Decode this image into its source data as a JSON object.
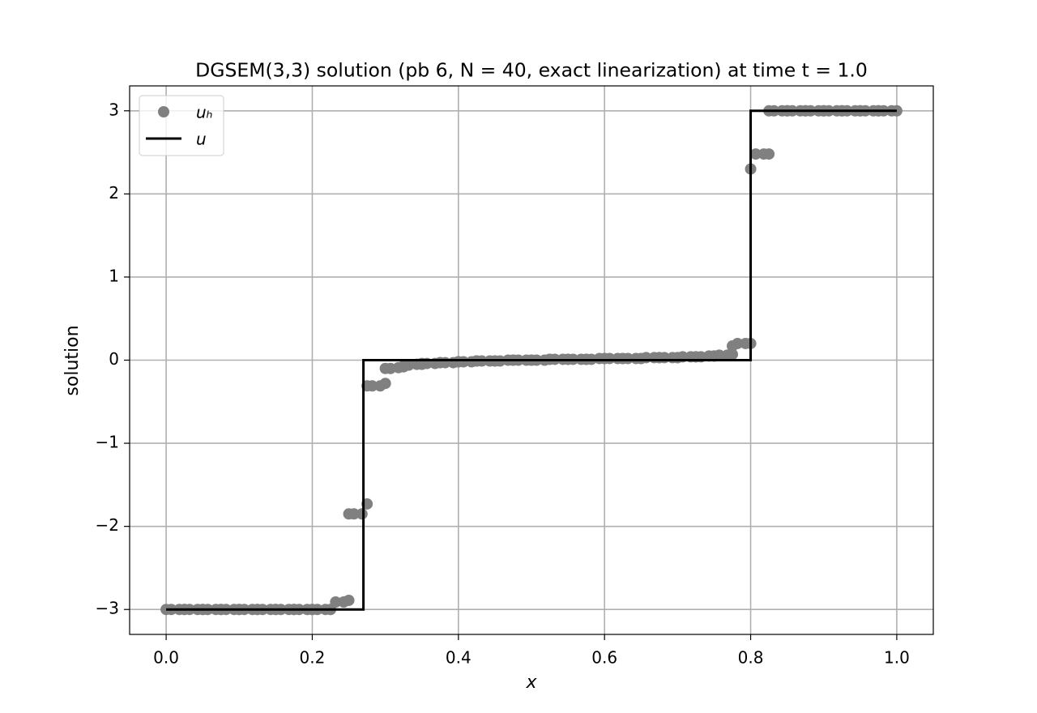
{
  "chart_data": {
    "type": "scatter",
    "title": "DGSEM(3,3) solution (pb 6, N = 40, exact linearization) at time t = 1.0",
    "xlabel": "x",
    "ylabel": "solution",
    "xlim": [
      -0.05,
      1.05
    ],
    "ylim": [
      -3.3,
      3.3
    ],
    "xticks": [
      {
        "value": 0,
        "label": "0.0"
      },
      0.2,
      0.4,
      0.6,
      0.8,
      {
        "value": 1,
        "label": "1.0"
      }
    ],
    "yticks": [
      {
        "value": -3,
        "label": "−3"
      },
      {
        "value": -2,
        "label": "−2"
      },
      {
        "value": -1,
        "label": "−1"
      },
      0,
      1,
      2,
      3
    ],
    "grid": true,
    "legend": "upper left",
    "series": [
      {
        "name": "uₕ",
        "type": "scatter",
        "color": "#808080",
        "x": [
          0,
          0.007,
          0.018,
          0.025,
          0.025,
          0.032,
          0.043,
          0.05,
          0.05,
          0.057,
          0.068,
          0.075,
          0.075,
          0.082,
          0.093,
          0.1,
          0.1,
          0.107,
          0.118,
          0.125,
          0.125,
          0.132,
          0.143,
          0.15,
          0.15,
          0.157,
          0.168,
          0.175,
          0.175,
          0.182,
          0.193,
          0.2,
          0.2,
          0.207,
          0.218,
          0.225,
          0.225,
          0.232,
          0.243,
          0.25,
          0.25,
          0.257,
          0.268,
          0.275,
          0.275,
          0.282,
          0.293,
          0.3,
          0.3,
          0.307,
          0.318,
          0.325,
          0.325,
          0.332,
          0.343,
          0.35,
          0.35,
          0.357,
          0.368,
          0.375,
          0.375,
          0.382,
          0.393,
          0.4,
          0.4,
          0.407,
          0.418,
          0.425,
          0.425,
          0.432,
          0.443,
          0.45,
          0.45,
          0.457,
          0.468,
          0.475,
          0.475,
          0.482,
          0.493,
          0.5,
          0.5,
          0.507,
          0.518,
          0.525,
          0.525,
          0.532,
          0.543,
          0.55,
          0.55,
          0.557,
          0.568,
          0.575,
          0.575,
          0.582,
          0.593,
          0.6,
          0.6,
          0.607,
          0.618,
          0.625,
          0.625,
          0.632,
          0.643,
          0.65,
          0.65,
          0.657,
          0.668,
          0.675,
          0.675,
          0.682,
          0.693,
          0.7,
          0.7,
          0.707,
          0.718,
          0.725,
          0.725,
          0.732,
          0.743,
          0.75,
          0.75,
          0.757,
          0.768,
          0.775,
          0.775,
          0.782,
          0.793,
          0.8,
          0.8,
          0.807,
          0.818,
          0.825,
          0.825,
          0.832,
          0.843,
          0.85,
          0.85,
          0.857,
          0.868,
          0.875,
          0.875,
          0.882,
          0.893,
          0.9,
          0.9,
          0.907,
          0.918,
          0.925,
          0.925,
          0.932,
          0.943,
          0.95,
          0.95,
          0.957,
          0.968,
          0.975,
          0.975,
          0.982,
          0.993,
          1
        ],
        "values": [
          -3,
          -3,
          -3,
          -3,
          -3,
          -3,
          -3,
          -3,
          -3,
          -3,
          -3,
          -3,
          -3,
          -3,
          -3,
          -3,
          -3,
          -3,
          -3,
          -3,
          -3,
          -3,
          -3,
          -3,
          -3,
          -3,
          -3,
          -3,
          -3,
          -3,
          -3,
          -3,
          -3,
          -3,
          -3,
          -3,
          -3,
          -2.91,
          -2.91,
          -2.89,
          -1.85,
          -1.85,
          -1.85,
          -1.73,
          -0.31,
          -0.31,
          -0.31,
          -0.28,
          -0.1,
          -0.1,
          -0.09,
          -0.08,
          -0.07,
          -0.06,
          -0.05,
          -0.05,
          -0.04,
          -0.04,
          -0.04,
          -0.03,
          -0.03,
          -0.03,
          -0.03,
          -0.02,
          -0.02,
          -0.02,
          -0.02,
          -0.01,
          -0.01,
          -0.01,
          -0.01,
          -0.01,
          -0.01,
          -0.01,
          0,
          0,
          0,
          0,
          0,
          0,
          0,
          0,
          0,
          0.01,
          0.01,
          0.01,
          0.01,
          0.01,
          0.01,
          0.01,
          0.01,
          0.01,
          0.01,
          0.01,
          0.02,
          0.02,
          0.02,
          0.02,
          0.02,
          0.02,
          0.02,
          0.02,
          0.02,
          0.02,
          0.02,
          0.03,
          0.03,
          0.03,
          0.03,
          0.03,
          0.03,
          0.03,
          0.03,
          0.04,
          0.04,
          0.04,
          0.04,
          0.04,
          0.05,
          0.05,
          0.05,
          0.06,
          0.06,
          0.07,
          0.17,
          0.2,
          0.2,
          0.2,
          2.3,
          2.48,
          2.48,
          2.48,
          3,
          3,
          3,
          3,
          3,
          3,
          3,
          3,
          3,
          3,
          3,
          3,
          3,
          3,
          3,
          3,
          3,
          3,
          3,
          3,
          3,
          3,
          3,
          3,
          3,
          3,
          3,
          3
        ]
      },
      {
        "name": "u",
        "type": "line",
        "color": "#000000",
        "x": [
          0,
          0.27,
          0.27,
          0.8,
          0.8,
          1
        ],
        "values": [
          -3,
          -3,
          0,
          0,
          3,
          3
        ]
      }
    ]
  }
}
